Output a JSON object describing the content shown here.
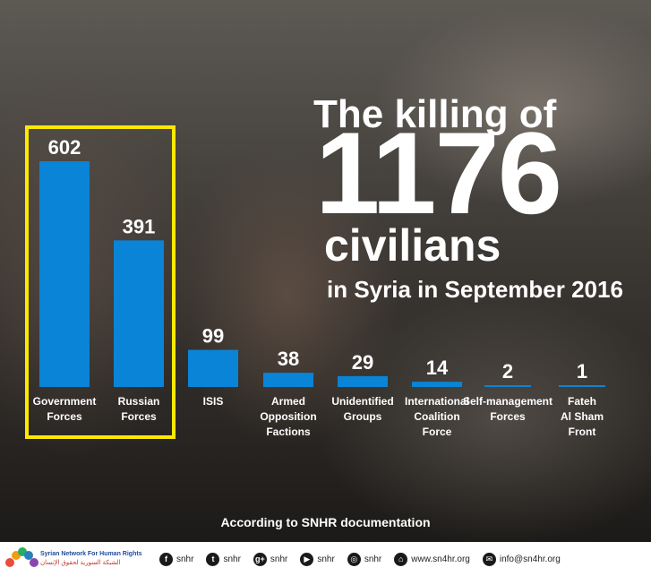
{
  "headline": {
    "line1": "The killing of",
    "number": "1176",
    "line3": "civilians",
    "line4": "in Syria in September 2016"
  },
  "chart_data": {
    "type": "bar",
    "title": "",
    "categories": [
      [
        "Government",
        "Forces"
      ],
      [
        "Russian",
        "Forces"
      ],
      [
        "ISIS"
      ],
      [
        "Armed",
        "Opposition",
        "Factions"
      ],
      [
        "Unidentified",
        "Groups"
      ],
      [
        "International",
        "Coalition",
        "Force"
      ],
      [
        "Self-management",
        "Forces"
      ],
      [
        "Fateh",
        "Al Sham",
        "Front"
      ]
    ],
    "values": [
      602,
      391,
      99,
      38,
      29,
      14,
      2,
      1
    ],
    "highlighted_categories": [
      0,
      1
    ],
    "bar_color": "#0a84d6",
    "highlight_color": "#ffe800",
    "ylim": [
      0,
      602
    ],
    "grid": false,
    "legend": "none"
  },
  "source_note": "According to SNHR documentation",
  "footer": {
    "org_name_en": "Syrian Network For Human Rights",
    "org_name_ar": "الشبكة السورية لحقوق الإنسان",
    "logo_colors": [
      "#e74c3c",
      "#f39c12",
      "#27ae60",
      "#2980b9",
      "#8e44ad"
    ],
    "social": [
      {
        "icon": "facebook-icon",
        "glyph": "f",
        "text": "snhr"
      },
      {
        "icon": "twitter-icon",
        "glyph": "t",
        "text": "snhr"
      },
      {
        "icon": "google-plus-icon",
        "glyph": "g+",
        "text": "snhr"
      },
      {
        "icon": "youtube-icon",
        "glyph": "▶",
        "text": "snhr"
      },
      {
        "icon": "instagram-icon",
        "glyph": "◎",
        "text": "snhr"
      },
      {
        "icon": "web-icon",
        "glyph": "⌂",
        "text": "www.sn4hr.org"
      },
      {
        "icon": "email-icon",
        "glyph": "✉",
        "text": "info@sn4hr.org"
      }
    ]
  }
}
